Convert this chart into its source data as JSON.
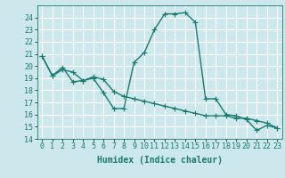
{
  "xlabel": "Humidex (Indice chaleur)",
  "ylabel": "",
  "bg_color": "#cce8ec",
  "grid_color": "#ffffff",
  "line_color": "#1a7a6e",
  "xlim": [
    -0.5,
    23.5
  ],
  "ylim": [
    14,
    25
  ],
  "yticks": [
    14,
    15,
    16,
    17,
    18,
    19,
    20,
    21,
    22,
    23,
    24
  ],
  "xticks": [
    0,
    1,
    2,
    3,
    4,
    5,
    6,
    7,
    8,
    9,
    10,
    11,
    12,
    13,
    14,
    15,
    16,
    17,
    18,
    19,
    20,
    21,
    22,
    23
  ],
  "line1_x": [
    0,
    1,
    2,
    3,
    4,
    5,
    6,
    7,
    8,
    9,
    10,
    11,
    12,
    13,
    14,
    15,
    16,
    17,
    18,
    19,
    20,
    21,
    22,
    23
  ],
  "line1_y": [
    20.8,
    19.2,
    19.7,
    19.5,
    18.8,
    19.0,
    17.8,
    16.5,
    16.5,
    20.3,
    21.1,
    23.0,
    24.3,
    24.3,
    24.4,
    23.6,
    17.3,
    17.3,
    16.0,
    15.9,
    15.6,
    14.7,
    15.1,
    14.9
  ],
  "line2_x": [
    0,
    1,
    2,
    3,
    4,
    5,
    6,
    7,
    8,
    9,
    10,
    11,
    12,
    13,
    14,
    15,
    16,
    17,
    18,
    19,
    20,
    21,
    22,
    23
  ],
  "line2_y": [
    20.8,
    19.2,
    19.9,
    18.7,
    18.8,
    19.1,
    18.9,
    17.9,
    17.5,
    17.3,
    17.1,
    16.9,
    16.7,
    16.5,
    16.3,
    16.1,
    15.9,
    15.9,
    15.9,
    15.7,
    15.7,
    15.5,
    15.3,
    14.9
  ],
  "marker": "+",
  "markersize": 4,
  "linewidth": 1.0,
  "xlabel_fontsize": 7,
  "tick_fontsize": 6
}
